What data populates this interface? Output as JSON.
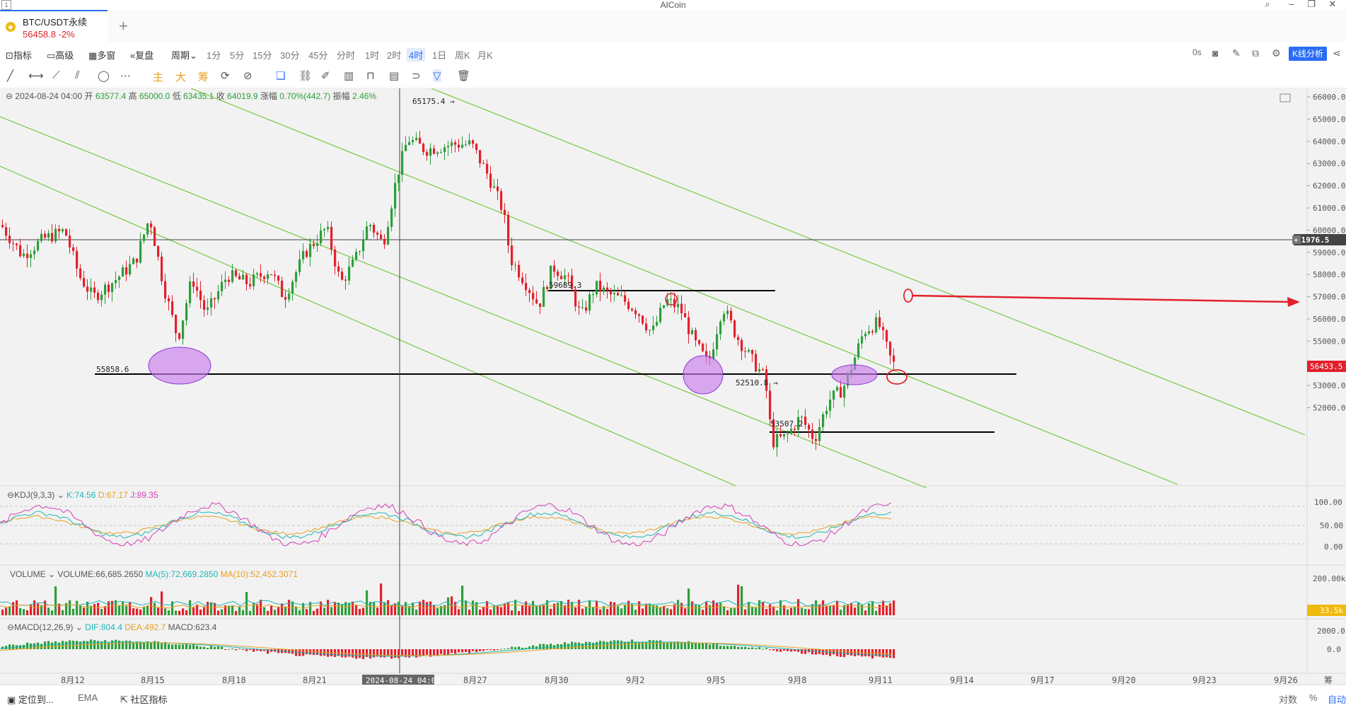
{
  "window": {
    "title": "AICoin"
  },
  "tab": {
    "symbol": "BTC/USDT永续",
    "price": "56458.8",
    "change": "-2%"
  },
  "menu": {
    "indicator": "指标",
    "advanced": "高级",
    "multi_window": "多窗",
    "replay": "复盘",
    "period": "周期",
    "periods": [
      "1分",
      "5分",
      "15分",
      "30分",
      "45分",
      "分时",
      "1时",
      "2时",
      "4时",
      "1日",
      "周K",
      "月K"
    ],
    "active_period": "4时",
    "countdown": "0s",
    "k_analysis": "K线分析"
  },
  "tools": {
    "main": "主",
    "big": "大",
    "chip": "筹"
  },
  "ohlc": {
    "date": "2024-08-24 04:00",
    "open_label": "开",
    "open": "63577.4",
    "high_label": "高",
    "high": "65000.0",
    "low_label": "低",
    "low": "63435.1",
    "close_label": "收",
    "close": "64019.9",
    "change_label": "涨幅",
    "change": "0.70%(442.7)",
    "amp_label": "振幅",
    "amp": "2.46%"
  },
  "price_axis": {
    "ticks": [
      "66000.0",
      "65000.0",
      "64000.0",
      "63000.0",
      "62000.0",
      "61000.0",
      "60000.0",
      "59000.0",
      "58000.0",
      "57000.0",
      "56000.0",
      "55000.0",
      "54000.0",
      "53000.0",
      "52000.0"
    ],
    "crosshair_price": "61976.5",
    "last_price": "56453.5"
  },
  "annotations": {
    "high_label": "65175.4",
    "low_label": "52510.8",
    "level_1": "55858.6",
    "level_2": "59689.3",
    "level_3": "53507.2"
  },
  "kdj": {
    "name": "KDJ(9,3,3)",
    "k": "K:74.56",
    "d": "D:67.17",
    "j": "J:89.35",
    "ticks": [
      "100.00",
      "50.00",
      "0.00"
    ]
  },
  "volume": {
    "name": "VOLUME",
    "vol": "VOLUME:66,685.2650",
    "ma5": "MA(5):72,669.2850",
    "ma10": "MA(10):52,452.3071",
    "ticks": [
      "200.00k"
    ],
    "last": "33.5k"
  },
  "macd": {
    "name": "MACD(12,26,9)",
    "dif": "DIF:804.4",
    "dea": "DEA:492.7",
    "macd": "MACD:623.4",
    "ticks": [
      "2000.0",
      "0.0"
    ]
  },
  "date_axis": {
    "labels": [
      "8月12",
      "8月15",
      "8月18",
      "8月21",
      "8月27",
      "8月30",
      "9月2",
      "9月5",
      "9月8",
      "9月11",
      "9月14",
      "9月17",
      "9月20",
      "9月23",
      "9月26"
    ],
    "crosshair_date": "2024-08-24 04:00",
    "corner": "筹"
  },
  "bottom": {
    "locate": "定位到...",
    "ema": "EMA",
    "community": "社区指标",
    "log": "对数",
    "percent": "%",
    "auto": "自动"
  },
  "colors": {
    "up": "#2d9e3a",
    "down": "#e3202c",
    "channel": "#7ac943",
    "accent": "#2a6df4",
    "ellipse": "#c77dea"
  }
}
